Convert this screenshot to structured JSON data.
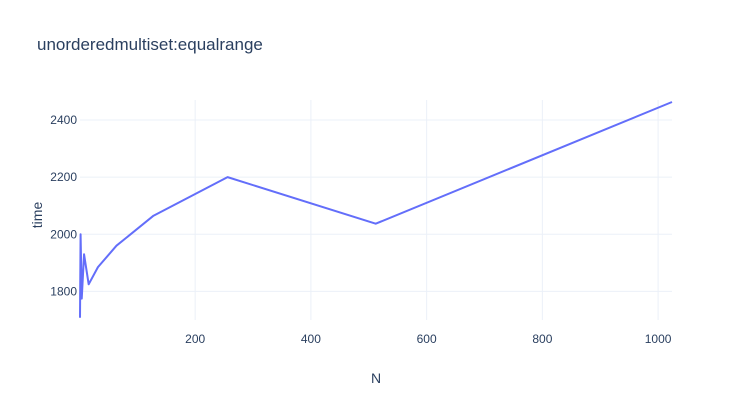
{
  "chart_data": {
    "type": "line",
    "title": "unorderedmultiset:equalrange",
    "xlabel": "N",
    "ylabel": "time",
    "xlim": [
      1,
      1024
    ],
    "ylim": [
      1700,
      2470
    ],
    "x_ticks": [
      200,
      400,
      600,
      800,
      1000
    ],
    "y_ticks": [
      1800,
      2000,
      2200,
      2400
    ],
    "grid": true,
    "series": [
      {
        "color": "#636efa",
        "x": [
          1,
          2,
          4,
          8,
          16,
          32,
          64,
          128,
          256,
          512,
          1024
        ],
        "y": [
          1708,
          2000,
          1775,
          1930,
          1825,
          1885,
          1960,
          2065,
          2200,
          2037,
          2463
        ]
      }
    ]
  }
}
